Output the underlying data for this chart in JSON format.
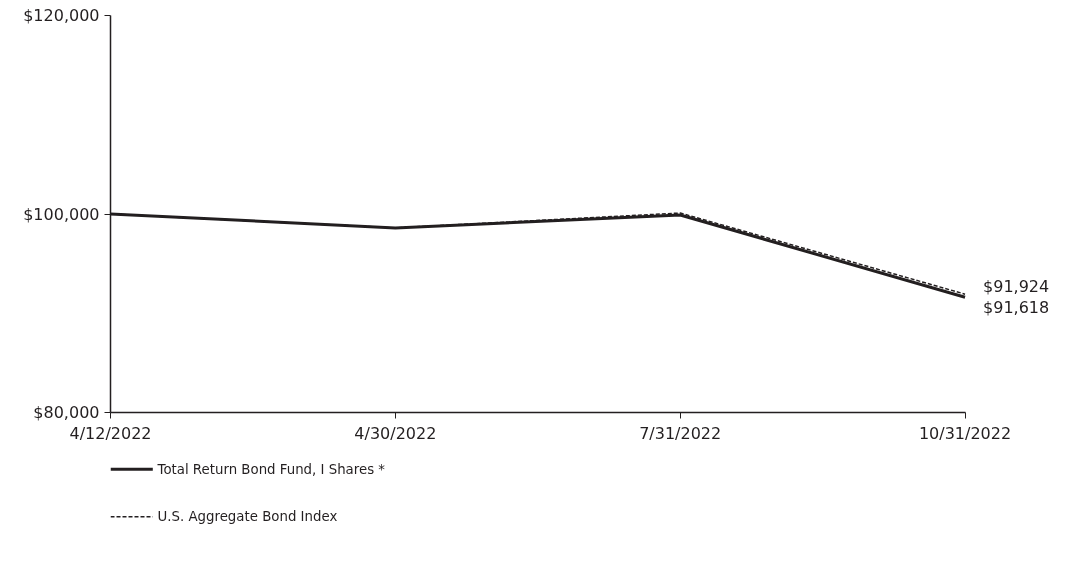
{
  "chart_data": {
    "type": "line",
    "categories": [
      "4/12/2022",
      "4/30/2022",
      "7/31/2022",
      "10/31/2022"
    ],
    "series": [
      {
        "name": "Total Return Bond Fund, I Shares *",
        "color": "#231f20",
        "values": [
          100000,
          98600,
          99900,
          91618
        ],
        "line_style": "solid"
      },
      {
        "name": "U.S. Aggregate Bond Index",
        "color": "#231f20",
        "values": [
          100000,
          98600,
          100100,
          91924
        ],
        "line_style": "dashed"
      }
    ],
    "ylim": [
      80000,
      120000
    ],
    "yticks": [
      {
        "value": 80000,
        "label": "$80,000"
      },
      {
        "value": 100000,
        "label": "$100,000"
      },
      {
        "value": 120000,
        "label": "$120,000"
      }
    ],
    "annotations": [
      {
        "text": "$91,924",
        "x": "10/31/2022",
        "y": 91924
      },
      {
        "text": "$91,618",
        "x": "10/31/2022",
        "y": 91618
      }
    ],
    "grid": false,
    "legend": "bottom left",
    "marker": "none"
  }
}
